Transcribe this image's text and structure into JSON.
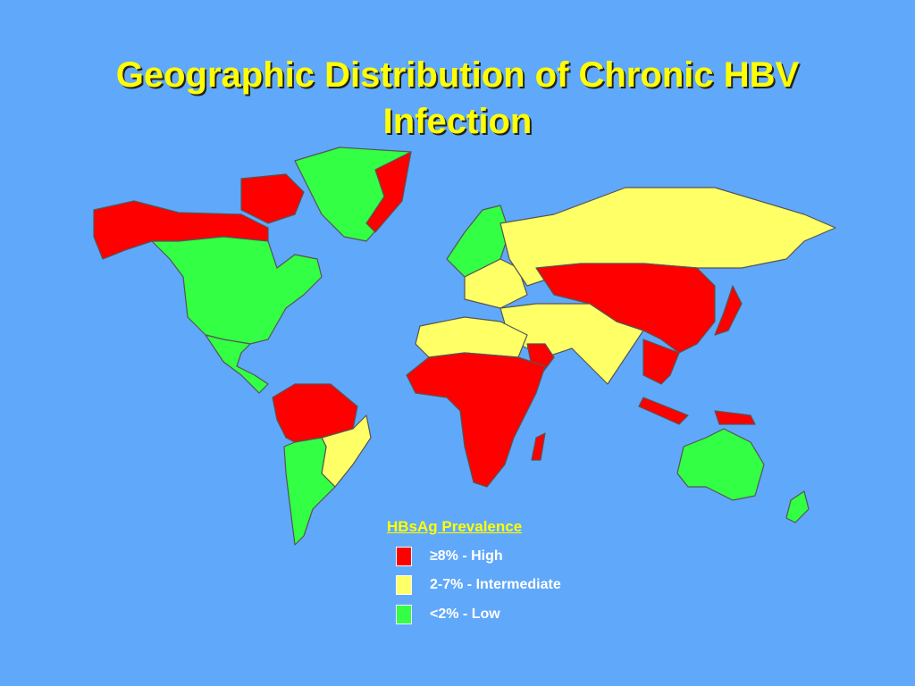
{
  "title": "Geographic Distribution of Chronic HBV Infection",
  "legend": {
    "title": "HBsAg Prevalence",
    "items": [
      {
        "label": "≥8% - High",
        "color": "#ff0000"
      },
      {
        "label": "2-7% - Intermediate",
        "color": "#ffff66"
      },
      {
        "label": "<2% - Low",
        "color": "#33ff44"
      }
    ]
  }
}
